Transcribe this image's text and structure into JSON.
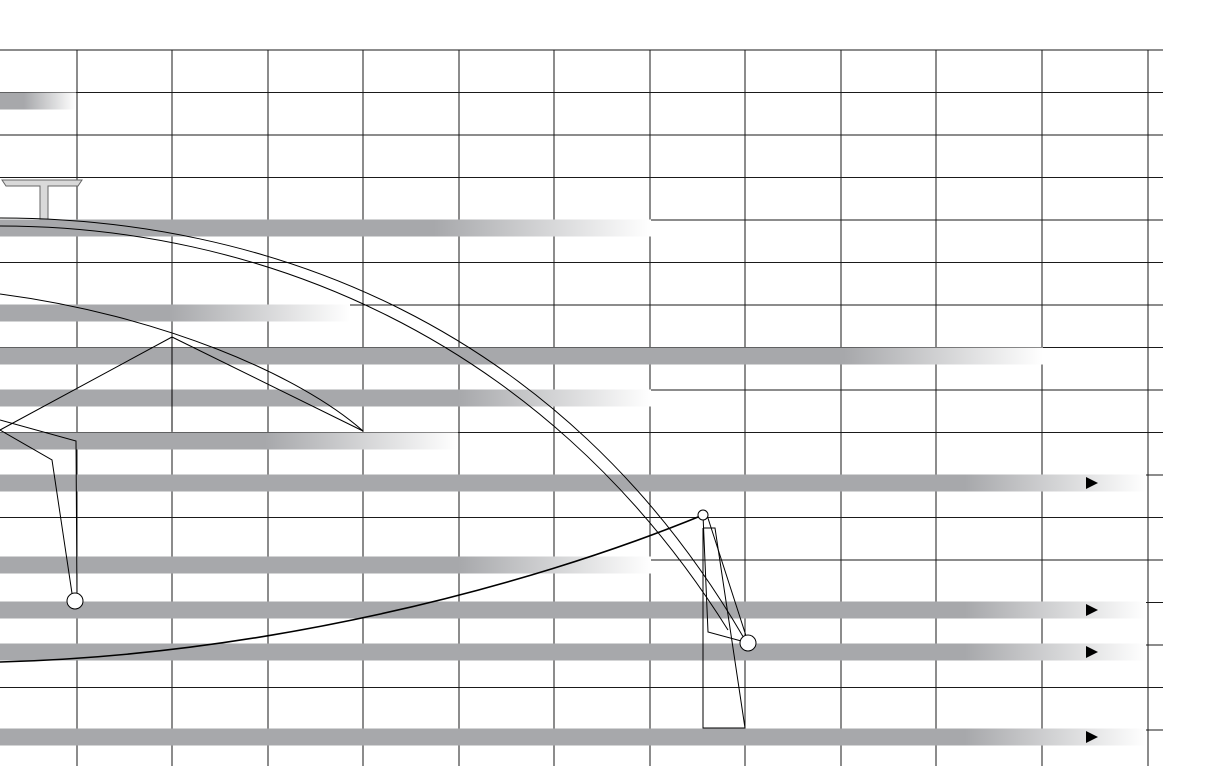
{
  "diagram": {
    "kind": "timeline-grid-with-orbital-curves",
    "colors": {
      "background": "#ffffff",
      "grid_line": "#1a1a1a",
      "bar_fill": "#a7a8ab",
      "bar_fade": "#ffffff",
      "curve_line": "#000000",
      "marker_fill": "#ffffff",
      "marker_stroke": "#000000",
      "arrow_fill": "#000000",
      "t_shape_fill": "#d9d9d9",
      "t_shape_stroke": "#666666"
    },
    "icons": [
      "right-arrow-icon",
      "circle-marker-icon",
      "t-beam-icon"
    ],
    "rows": [
      {
        "id": "r1",
        "solid_end": 0.02,
        "fade_end": 0.063,
        "arrow": false
      },
      {
        "id": "r2",
        "solid_end": 0.36,
        "fade_end": 0.54,
        "arrow": false
      },
      {
        "id": "r3",
        "solid_end": 0.14,
        "fade_end": 0.29,
        "arrow": false
      },
      {
        "id": "r4",
        "solid_end": 0.7,
        "fade_end": 0.865,
        "arrow": false
      },
      {
        "id": "r5",
        "solid_end": 0.38,
        "fade_end": 0.54,
        "arrow": false
      },
      {
        "id": "r6",
        "solid_end": 0.22,
        "fade_end": 0.38,
        "arrow": false
      },
      {
        "id": "r7",
        "solid_end": 0.8,
        "fade_end": 0.95,
        "arrow": true
      },
      {
        "id": "r8",
        "solid_end": 0.38,
        "fade_end": 0.54,
        "arrow": false
      },
      {
        "id": "r9",
        "solid_end": 0.8,
        "fade_end": 0.95,
        "arrow": true
      },
      {
        "id": "r10",
        "solid_end": 0.8,
        "fade_end": 0.95,
        "arrow": true
      },
      {
        "id": "r11",
        "solid_end": 0.8,
        "fade_end": 0.95,
        "arrow": true
      }
    ]
  }
}
